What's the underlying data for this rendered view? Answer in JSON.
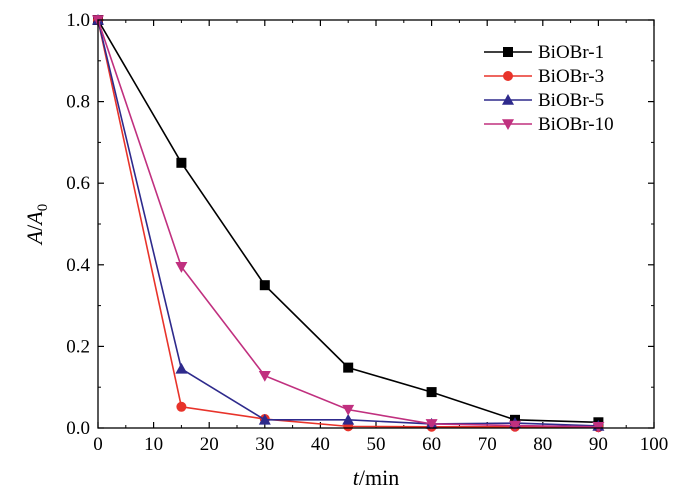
{
  "chart_data": {
    "type": "line",
    "title": "",
    "xlabel": {
      "var": "t",
      "unit": "min"
    },
    "ylabel": {
      "var": "A",
      "sep": "/",
      "var2": "A",
      "sub": "0"
    },
    "xlim": [
      0,
      100
    ],
    "ylim": [
      0,
      1.0
    ],
    "x_ticks": [
      0,
      10,
      20,
      30,
      40,
      50,
      60,
      70,
      80,
      90,
      100
    ],
    "y_ticks": [
      0.0,
      0.2,
      0.4,
      0.6,
      0.8,
      1.0
    ],
    "x_tick_labels": [
      "0",
      "10",
      "20",
      "30",
      "40",
      "50",
      "60",
      "70",
      "80",
      "90",
      "100"
    ],
    "y_tick_labels": [
      "0.0",
      "0.2",
      "0.4",
      "0.6",
      "0.8",
      "1.0"
    ],
    "legend_position": "top-right",
    "x": [
      0,
      15,
      30,
      45,
      60,
      75,
      90
    ],
    "series": [
      {
        "name": "BiOBr-1",
        "color": "#000000",
        "marker": "square",
        "values": [
          1.0,
          0.65,
          0.35,
          0.148,
          0.088,
          0.02,
          0.014
        ]
      },
      {
        "name": "BiOBr-3",
        "color": "#e8332a",
        "marker": "circle",
        "values": [
          1.0,
          0.052,
          0.022,
          0.004,
          0.003,
          0.003,
          0.002
        ]
      },
      {
        "name": "BiOBr-5",
        "color": "#2e2a8c",
        "marker": "triangle-up",
        "values": [
          1.0,
          0.145,
          0.02,
          0.02,
          0.01,
          0.012,
          0.005
        ]
      },
      {
        "name": "BiOBr-10",
        "color": "#c0307f",
        "marker": "triangle-down",
        "values": [
          1.0,
          0.395,
          0.128,
          0.045,
          0.01,
          0.006,
          0.003
        ]
      }
    ]
  }
}
